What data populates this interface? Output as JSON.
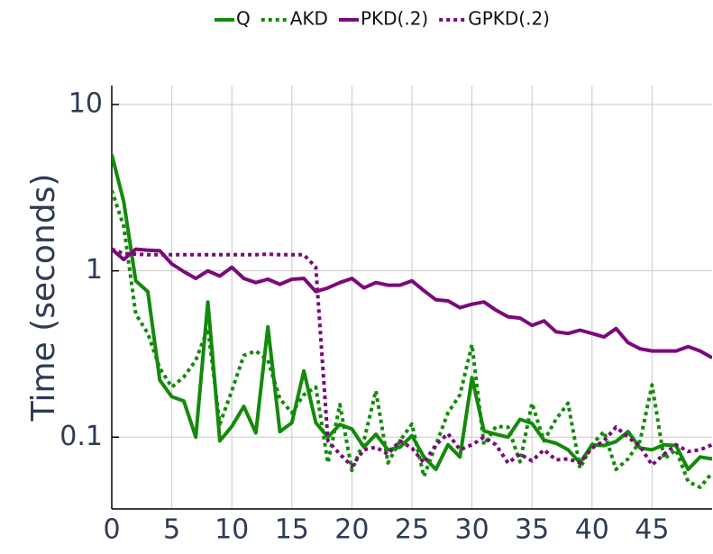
{
  "chart_data": {
    "type": "line",
    "y_label": "Time (seconds)",
    "x": [
      0,
      1,
      2,
      3,
      4,
      5,
      6,
      7,
      8,
      9,
      10,
      11,
      12,
      13,
      14,
      15,
      16,
      17,
      18,
      19,
      20,
      21,
      22,
      23,
      24,
      25,
      26,
      27,
      28,
      29,
      30,
      31,
      32,
      33,
      34,
      35,
      36,
      37,
      38,
      39,
      40,
      41,
      42,
      43,
      44,
      45,
      46,
      47,
      48,
      49,
      50
    ],
    "xlim": [
      0,
      50
    ],
    "xticks": [
      0,
      5,
      10,
      15,
      20,
      25,
      30,
      35,
      40,
      45
    ],
    "ylim": [
      0.037,
      13
    ],
    "yticks": [
      0.1,
      1,
      10
    ],
    "log_y": true,
    "grid": true,
    "legend_position": "top",
    "series": [
      {
        "name": "Q",
        "color": "#138a0a",
        "dashed": false,
        "values": [
          5.0,
          2.6,
          0.87,
          0.75,
          0.22,
          0.175,
          0.165,
          0.1,
          0.65,
          0.095,
          0.116,
          0.153,
          0.106,
          0.46,
          0.108,
          0.122,
          0.25,
          0.122,
          0.1,
          0.119,
          0.112,
          0.087,
          0.104,
          0.084,
          0.087,
          0.102,
          0.076,
          0.064,
          0.09,
          0.076,
          0.228,
          0.109,
          0.104,
          0.1,
          0.128,
          0.121,
          0.096,
          0.092,
          0.084,
          0.07,
          0.09,
          0.089,
          0.094,
          0.108,
          0.086,
          0.084,
          0.09,
          0.089,
          0.064,
          0.076,
          0.074
        ]
      },
      {
        "name": "AKD",
        "color": "#138a0a",
        "dashed": true,
        "values": [
          3.05,
          1.85,
          0.55,
          0.42,
          0.26,
          0.2,
          0.23,
          0.29,
          0.45,
          0.12,
          0.19,
          0.31,
          0.33,
          0.29,
          0.17,
          0.14,
          0.18,
          0.2,
          0.07,
          0.157,
          0.063,
          0.095,
          0.19,
          0.07,
          0.095,
          0.12,
          0.058,
          0.09,
          0.14,
          0.18,
          0.36,
          0.09,
          0.116,
          0.115,
          0.071,
          0.16,
          0.095,
          0.128,
          0.16,
          0.065,
          0.09,
          0.108,
          0.064,
          0.074,
          0.095,
          0.206,
          0.074,
          0.084,
          0.054,
          0.05,
          0.061
        ]
      },
      {
        "name": "PKD(.2)",
        "color": "#7a0a7a",
        "dashed": false,
        "values": [
          1.35,
          1.17,
          1.35,
          1.33,
          1.32,
          1.1,
          0.99,
          0.9,
          1.0,
          0.93,
          1.05,
          0.9,
          0.85,
          0.89,
          0.83,
          0.89,
          0.9,
          0.75,
          0.79,
          0.85,
          0.9,
          0.79,
          0.85,
          0.82,
          0.82,
          0.87,
          0.76,
          0.67,
          0.66,
          0.6,
          0.63,
          0.65,
          0.58,
          0.53,
          0.52,
          0.47,
          0.5,
          0.43,
          0.42,
          0.44,
          0.42,
          0.4,
          0.45,
          0.37,
          0.34,
          0.33,
          0.33,
          0.33,
          0.35,
          0.33,
          0.3
        ]
      },
      {
        "name": "GPKD(.2)",
        "color": "#7a0a7a",
        "dashed": true,
        "values": [
          1.35,
          1.27,
          1.26,
          1.25,
          1.25,
          1.25,
          1.25,
          1.25,
          1.25,
          1.25,
          1.25,
          1.25,
          1.25,
          1.26,
          1.25,
          1.25,
          1.25,
          1.05,
          0.095,
          0.079,
          0.067,
          0.084,
          0.087,
          0.079,
          0.095,
          0.086,
          0.07,
          0.09,
          0.105,
          0.084,
          0.09,
          0.1,
          0.09,
          0.07,
          0.079,
          0.072,
          0.084,
          0.073,
          0.074,
          0.07,
          0.086,
          0.095,
          0.115,
          0.1,
          0.088,
          0.068,
          0.079,
          0.09,
          0.082,
          0.084,
          0.09
        ]
      }
    ]
  }
}
